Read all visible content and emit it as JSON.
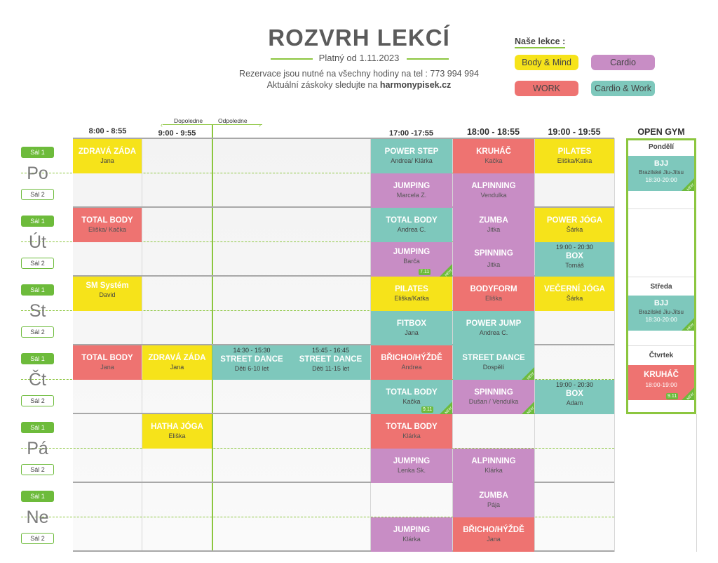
{
  "header": {
    "title": "ROZVRH LEKCÍ",
    "valid": "Platný od 1.11.2023",
    "reservation": "Rezervace jsou nutné na všechny hodiny na tel : 773 994 994",
    "subs_prefix": "Aktuální záskoky sledujte na ",
    "subs_site": "harmonypisek.cz"
  },
  "legend": {
    "title": "Naše lekce :",
    "items": [
      "Body & Mind",
      "Cardio",
      "WORK",
      "Cardio & Work"
    ]
  },
  "colors": {
    "body_mind": "#f6e31a",
    "cardio": "#c88dc5",
    "work": "#ee7371",
    "cardio_work": "#7ec8bc",
    "accent": "#8cc63f"
  },
  "times": {
    "t1": "8:00 - 8:55",
    "t2": "9:00 - 9:55",
    "dop": "Dopoledne",
    "odp": "Odpoledne",
    "t3": "17:00 -17:55",
    "t4": "18:00 - 18:55",
    "t5": "19:00 - 19:55",
    "og": "OPEN GYM"
  },
  "rooms": {
    "s1": "Sál 1",
    "s2": "Sál 2"
  },
  "days": [
    "Po",
    "Út",
    "St",
    "Čt",
    "Pá",
    "Ne"
  ],
  "badges": {
    "new": "NEW",
    "d711": "7.11",
    "d911": "9.11"
  },
  "classes": {
    "c1": {
      "n": "ZDRAVÁ ZÁDA",
      "s": "Jana"
    },
    "c2": {
      "n": "POWER STEP",
      "s": "Andrea/ Klárka"
    },
    "c3": {
      "n": "KRUHÁČ",
      "s": "Kačka"
    },
    "c4": {
      "n": "PILATES",
      "s": "Eliška/Katka"
    },
    "c5": {
      "n": "JUMPING",
      "s": "Marcela Z."
    },
    "c6": {
      "n": "ALPINNING",
      "s": "Vendulka"
    },
    "c7": {
      "n": "TOTAL BODY",
      "s": "Eliška/ Kačka"
    },
    "c8": {
      "n": "TOTAL BODY",
      "s": "Andrea C."
    },
    "c9": {
      "n": "ZUMBA",
      "s": "Jitka"
    },
    "c10": {
      "n": "POWER JÓGA",
      "s": "Šárka"
    },
    "c11": {
      "n": "JUMPING",
      "s": "Barča"
    },
    "c12": {
      "n": "SPINNING",
      "s": "Jitka"
    },
    "c13": {
      "t": "19:00 - 20:30",
      "n": "BOX",
      "s": "Tomáš"
    },
    "c14": {
      "n": "SM Systém",
      "s": "David"
    },
    "c15": {
      "n": "PILATES",
      "s": "Eliška/Katka"
    },
    "c16": {
      "n": "BODYFORM",
      "s": "Eliška"
    },
    "c17": {
      "n": "VEČERNÍ JÓGA",
      "s": "Šárka"
    },
    "c18": {
      "n": "FITBOX",
      "s": "Jana"
    },
    "c19": {
      "n": "POWER JUMP",
      "s": "Andrea C."
    },
    "c20": {
      "n": "TOTAL BODY",
      "s": "Jana"
    },
    "c21": {
      "n": "ZDRAVÁ ZÁDA",
      "s": "Jana"
    },
    "c22": {
      "t": "14:30 - 15:30",
      "n": "STREET DANCE",
      "s": "Děti 6-10 let"
    },
    "c23": {
      "t": "15:45 - 16:45",
      "n": "STREET DANCE",
      "s": "Děti 11-15 let"
    },
    "c24": {
      "n": "BŘICHO/HÝŽDĚ",
      "s": "Andrea"
    },
    "c25": {
      "n": "STREET DANCE",
      "s": "Dospělí"
    },
    "c26": {
      "n": "TOTAL BODY",
      "s": "Kačka"
    },
    "c27": {
      "n": "SPINNING",
      "s": "Dušan / Vendulka"
    },
    "c28": {
      "t": "19:00 - 20:30",
      "n": "BOX",
      "s": "Adam"
    },
    "c29": {
      "n": "HATHA JÓGA",
      "s": "Eliška"
    },
    "c30": {
      "n": "TOTAL BODY",
      "s": "Klárka"
    },
    "c31": {
      "n": "JUMPING",
      "s": "Lenka Sk."
    },
    "c32": {
      "n": "ALPINNING",
      "s": "Klárka"
    },
    "c33": {
      "n": "ZUMBA",
      "s": "Pája"
    },
    "c34": {
      "n": "JUMPING",
      "s": "Klárka"
    },
    "c35": {
      "n": "BŘICHO/HÝŽDĚ",
      "s": "Jana"
    }
  },
  "open_gym": {
    "mon": {
      "day": "Pondělí",
      "n": "BJJ",
      "s": "Brazilské Jiu-Jitsu",
      "t": "18:30-20:00"
    },
    "wed": {
      "day": "Středa",
      "n": "BJJ",
      "s": "Brazilské Jiu-Jitsu",
      "t": "18:30-20:00"
    },
    "thu": {
      "day": "Čtvrtek",
      "n": "KRUHÁČ",
      "t": "18:00-19:00"
    }
  }
}
